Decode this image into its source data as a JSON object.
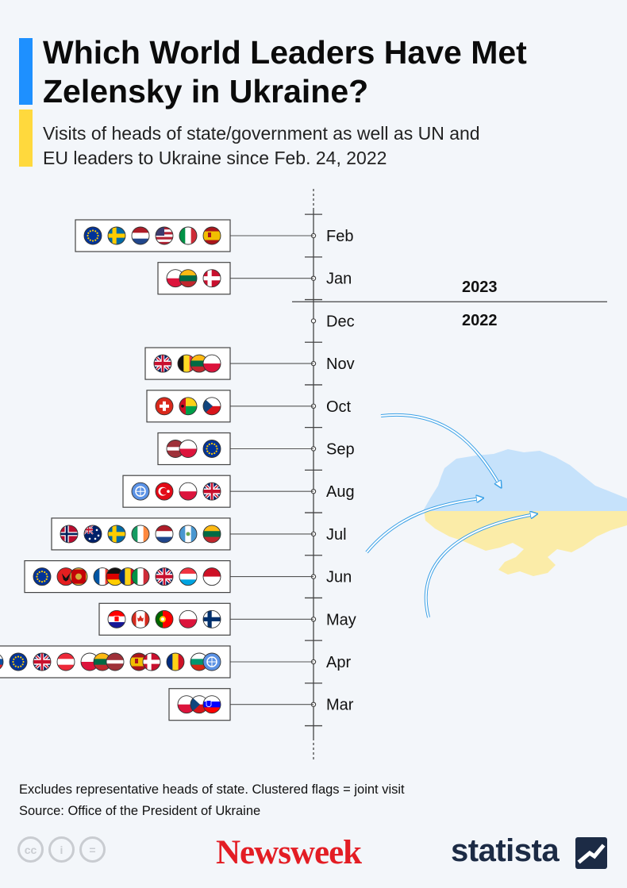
{
  "header": {
    "title": "Which World Leaders Have Met Zelensky in Ukraine?",
    "subtitle": "Visits of heads of state/government as well as UN and EU leaders to Ukraine since Feb. 24, 2022"
  },
  "colors": {
    "accent_blue": "#1e90ff",
    "accent_yellow": "#ffd93d",
    "map_blue": "#c6e2fb",
    "map_yellow": "#fbeca8",
    "arrow": "#3aa0e6"
  },
  "chart_data": {
    "type": "timeline",
    "year_divider": {
      "after_month": "Jan",
      "upper_label": "2023",
      "lower_label": "2022"
    },
    "months": [
      {
        "label": "Feb",
        "year": 2023,
        "visits": [
          [
            "eu"
          ],
          [
            "se"
          ],
          [
            "nl"
          ],
          [
            "us"
          ],
          [
            "it"
          ],
          [
            "es"
          ]
        ]
      },
      {
        "label": "Jan",
        "year": 2023,
        "visits": [
          [
            "pl",
            "lt"
          ],
          [
            "dk"
          ]
        ]
      },
      {
        "label": "Dec",
        "year": 2022,
        "visits": []
      },
      {
        "label": "Nov",
        "year": 2022,
        "visits": [
          [
            "gb"
          ],
          [
            "be",
            "lt",
            "pl"
          ]
        ]
      },
      {
        "label": "Oct",
        "year": 2022,
        "visits": [
          [
            "ch"
          ],
          [
            "gw"
          ],
          [
            "cz"
          ]
        ]
      },
      {
        "label": "Sep",
        "year": 2022,
        "visits": [
          [
            "lv",
            "pl"
          ],
          [
            "eu"
          ]
        ]
      },
      {
        "label": "Aug",
        "year": 2022,
        "visits": [
          [
            "un"
          ],
          [
            "tr"
          ],
          [
            "pl"
          ],
          [
            "gb"
          ]
        ]
      },
      {
        "label": "Jul",
        "year": 2022,
        "visits": [
          [
            "no"
          ],
          [
            "au"
          ],
          [
            "se"
          ],
          [
            "ie"
          ],
          [
            "nl"
          ],
          [
            "gt"
          ],
          [
            "lt"
          ]
        ]
      },
      {
        "label": "Jun",
        "year": 2022,
        "visits": [
          [
            "eu"
          ],
          [
            "al",
            "me"
          ],
          [
            "fr",
            "de",
            "ro",
            "it"
          ],
          [
            "gb"
          ],
          [
            "lu"
          ],
          [
            "id"
          ]
        ]
      },
      {
        "label": "May",
        "year": 2022,
        "visits": [
          [
            "hr"
          ],
          [
            "ca"
          ],
          [
            "pt"
          ],
          [
            "pl"
          ],
          [
            "fi"
          ]
        ]
      },
      {
        "label": "Apr",
        "year": 2022,
        "visits": [
          [
            "sk"
          ],
          [
            "eu"
          ],
          [
            "gb"
          ],
          [
            "at"
          ],
          [
            "pl",
            "lt",
            "lv"
          ],
          [
            "es",
            "dk"
          ],
          [
            "ro"
          ],
          [
            "bg",
            "un"
          ]
        ]
      },
      {
        "label": "Mar",
        "year": 2022,
        "visits": [
          [
            "pl",
            "cz",
            "si"
          ]
        ]
      }
    ]
  },
  "flag_icons": {
    "eu": "european-union-flag-icon",
    "se": "sweden-flag-icon",
    "nl": "netherlands-flag-icon",
    "us": "united-states-flag-icon",
    "it": "italy-flag-icon",
    "es": "spain-flag-icon",
    "pl": "poland-flag-icon",
    "lt": "lithuania-flag-icon",
    "dk": "denmark-flag-icon",
    "gb": "united-kingdom-flag-icon",
    "be": "belgium-flag-icon",
    "ch": "switzerland-flag-icon",
    "gw": "guinea-bissau-flag-icon",
    "cz": "czechia-flag-icon",
    "lv": "latvia-flag-icon",
    "un": "united-nations-flag-icon",
    "tr": "turkey-flag-icon",
    "no": "norway-flag-icon",
    "au": "australia-flag-icon",
    "ie": "ireland-flag-icon",
    "gt": "guatemala-flag-icon",
    "al": "albania-flag-icon",
    "me": "montenegro-flag-icon",
    "fr": "france-flag-icon",
    "de": "germany-flag-icon",
    "ro": "romania-flag-icon",
    "lu": "luxembourg-flag-icon",
    "id": "indonesia-flag-icon",
    "hr": "croatia-flag-icon",
    "ca": "canada-flag-icon",
    "pt": "portugal-flag-icon",
    "fi": "finland-flag-icon",
    "sk": "slovakia-flag-icon",
    "at": "austria-flag-icon",
    "bg": "bulgaria-flag-icon",
    "si": "slovenia-flag-icon"
  },
  "footer": {
    "note": "Excludes representative heads of state. Clustered flags = joint visit",
    "source": "Source: Office of the President of Ukraine",
    "cc_icons": [
      "cc",
      "i",
      "="
    ],
    "publisher": "Newsweek",
    "brand": "statista"
  }
}
